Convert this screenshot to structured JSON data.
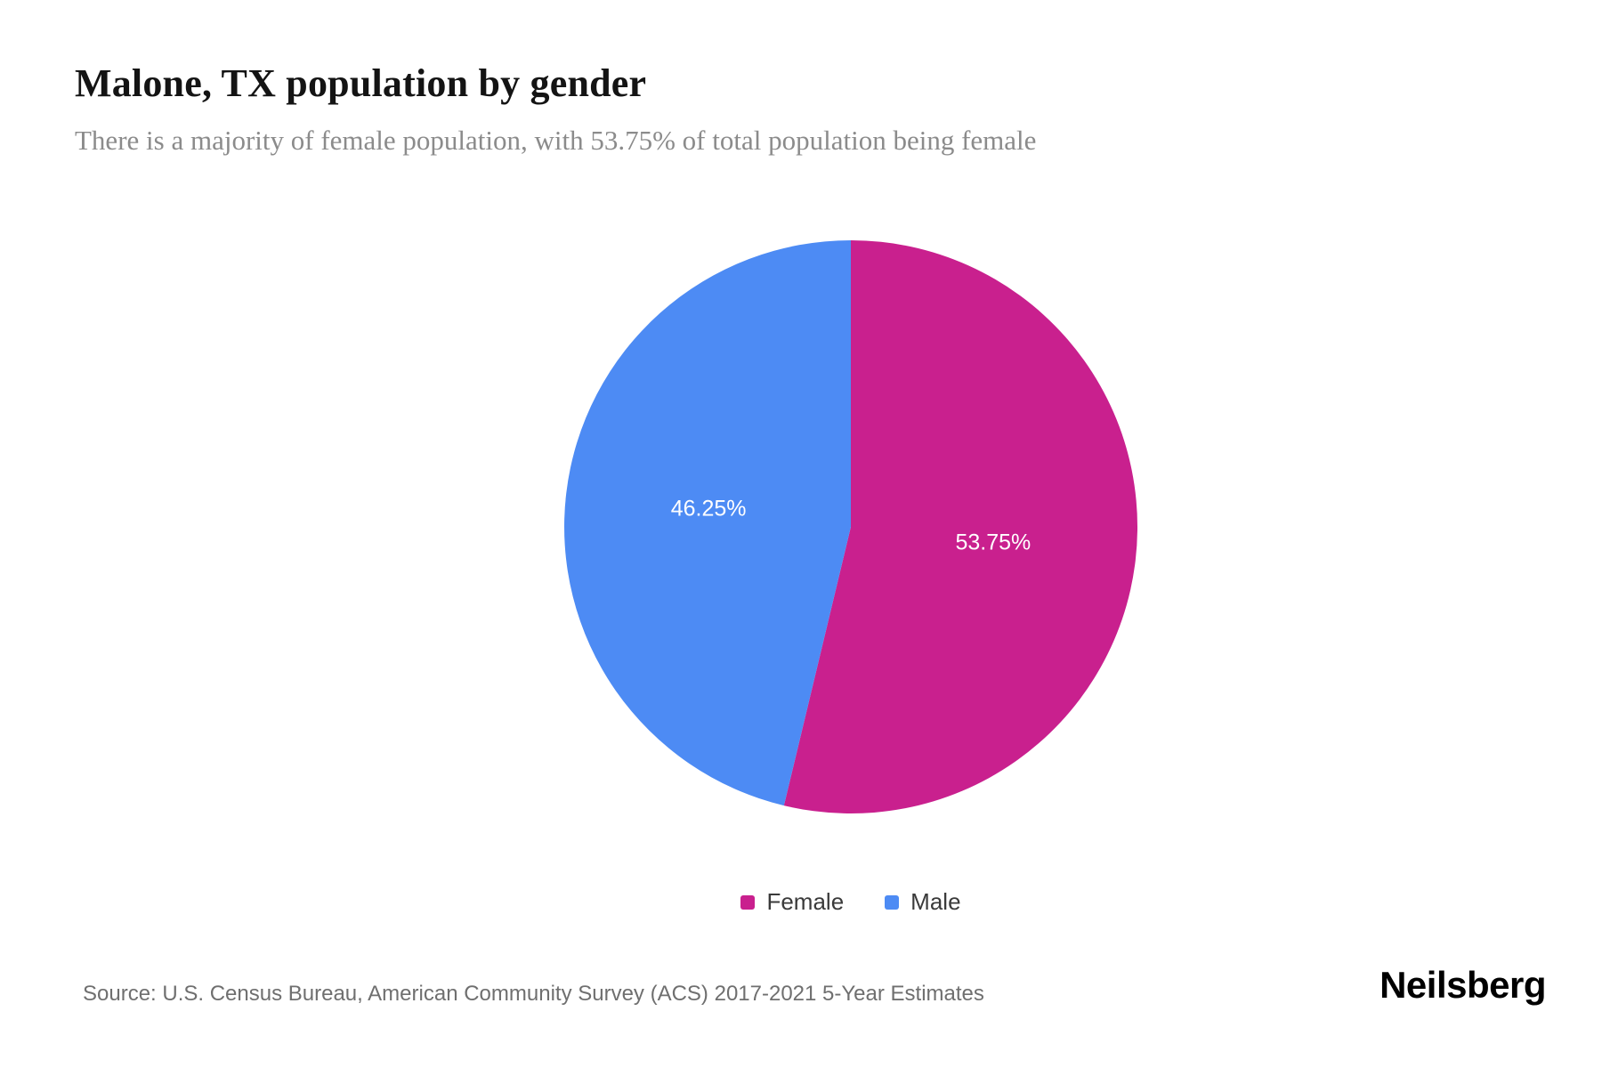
{
  "header": {
    "title": "Malone, TX population by gender",
    "subtitle": "There is a majority of female population, with 53.75% of total population being female"
  },
  "chart_data": {
    "type": "pie",
    "title": "Malone, TX population by gender",
    "slices": [
      {
        "label": "Female",
        "value": 53.75,
        "display": "53.75%",
        "color": "#c9208e"
      },
      {
        "label": "Male",
        "value": 46.25,
        "display": "46.25%",
        "color": "#4d8bf4"
      }
    ],
    "start_angle_deg": -90,
    "direction": "clockwise",
    "labels_inside": true,
    "label_color": "#ffffff",
    "legend_position": "bottom"
  },
  "footer": {
    "source": "Source: U.S. Census Bureau, American Community Survey (ACS) 2017-2021 5-Year Estimates",
    "brand": "Neilsberg"
  }
}
